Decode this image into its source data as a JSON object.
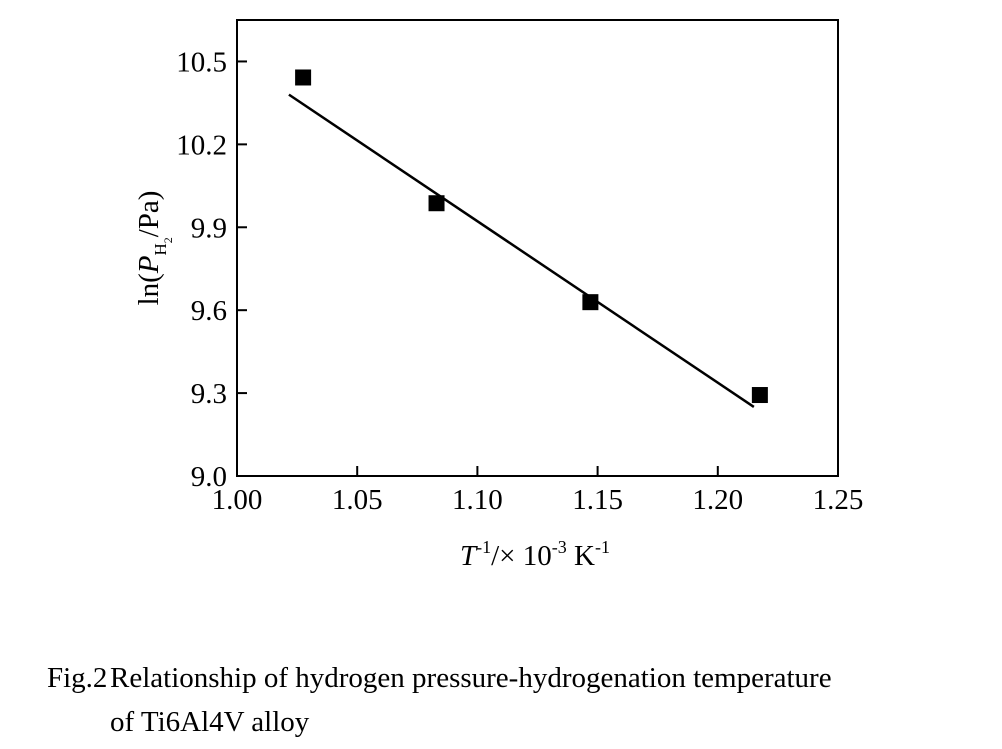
{
  "chart_data": {
    "type": "scatter",
    "x": [
      1.0275,
      1.083,
      1.147,
      1.2175
    ],
    "values": [
      10.442,
      9.987,
      9.629,
      9.293
    ],
    "color": "#000000",
    "fit": {
      "x": [
        1.0216,
        1.215
      ],
      "values": [
        10.38,
        9.25
      ],
      "color": "#000000"
    },
    "xlim": [
      1.0,
      1.25
    ],
    "xticks": [
      {
        "value": 1.0,
        "label": "1.00"
      },
      {
        "value": 1.05,
        "label": "1.05"
      },
      {
        "value": 1.1,
        "label": "1.10"
      },
      {
        "value": 1.15,
        "label": "1.15"
      },
      {
        "value": 1.2,
        "label": "1.20"
      },
      {
        "value": 1.25,
        "label": "1.25"
      }
    ],
    "ylim": [
      9.0,
      10.65
    ],
    "yticks": [
      {
        "value": 9.0,
        "label": "9.0"
      },
      9.3,
      9.6,
      9.9,
      10.2,
      10.5
    ],
    "ylabel_parts": [
      "ln(",
      "P",
      "H",
      "2",
      "/Pa)"
    ],
    "xlabel_parts": [
      "T",
      "-1",
      "/× 10",
      "-3",
      " K",
      "-1"
    ]
  },
  "caption": {
    "number": "Fig.2",
    "lines": [
      "Relationship of hydrogen pressure-hydrogenation temperature",
      "of Ti6Al4V alloy"
    ]
  }
}
